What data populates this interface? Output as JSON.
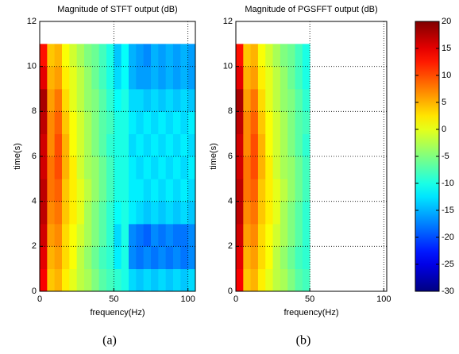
{
  "chart_data": [
    {
      "type": "heatmap",
      "title": "Magnitude of STFT output (dB)",
      "xlabel": "frequency(Hz)",
      "ylabel": "time(s)",
      "caption": "(a)",
      "x_edges": [
        0,
        5,
        10,
        15,
        20,
        25,
        30,
        35,
        40,
        45,
        50,
        55,
        60,
        65,
        70,
        75,
        80,
        85,
        90,
        95,
        100,
        105
      ],
      "y_edges": [
        0,
        1,
        2,
        3,
        4,
        5,
        6,
        7,
        8,
        9,
        10,
        11
      ],
      "z": [
        [
          14,
          4,
          5,
          2,
          0,
          -2,
          -3,
          -5,
          -7,
          -8,
          -9,
          -10,
          -13,
          -14,
          -13,
          -14,
          -13,
          -14,
          -13,
          -14,
          -13
        ],
        [
          15,
          5,
          6,
          3,
          1,
          -2,
          -4,
          -6,
          -8,
          -9,
          -12,
          -10,
          -17,
          -18,
          -17,
          -18,
          -17,
          -18,
          -17,
          -18,
          -17
        ],
        [
          16,
          6,
          7,
          3,
          1,
          -1,
          -3,
          -5,
          -7,
          -9,
          -13,
          -10,
          -17,
          -18,
          -19,
          -17,
          -18,
          -17,
          -18,
          -18,
          -17
        ],
        [
          17,
          7,
          8,
          4,
          2,
          0,
          -3,
          -5,
          -7,
          -9,
          -11,
          -10,
          -12,
          -13,
          -14,
          -13,
          -14,
          -13,
          -14,
          -13,
          -14
        ],
        [
          17,
          8,
          9,
          4,
          2,
          0,
          -2,
          -4,
          -6,
          -8,
          -10,
          -10,
          -12,
          -12,
          -13,
          -12,
          -13,
          -12,
          -13,
          -12,
          -13
        ],
        [
          16,
          8,
          10,
          5,
          2,
          -1,
          -3,
          -4,
          -6,
          -8,
          -10,
          -10,
          -12,
          -13,
          -12,
          -13,
          -12,
          -13,
          -12,
          -13,
          -12
        ],
        [
          16,
          7,
          10,
          5,
          1,
          -1,
          -3,
          -5,
          -7,
          -9,
          -10,
          -10,
          -13,
          -12,
          -13,
          -12,
          -13,
          -12,
          -13,
          -12,
          -13
        ],
        [
          17,
          7,
          9,
          4,
          1,
          -1,
          -3,
          -5,
          -7,
          -8,
          -10,
          -10,
          -12,
          -13,
          -12,
          -13,
          -12,
          -13,
          -12,
          -13,
          -12
        ],
        [
          18,
          6,
          8,
          3,
          0,
          -2,
          -4,
          -5,
          -7,
          -9,
          -11,
          -10,
          -13,
          -13,
          -14,
          -13,
          -14,
          -13,
          -14,
          -13,
          -14
        ],
        [
          15,
          5,
          6,
          2,
          0,
          -2,
          -4,
          -6,
          -8,
          -10,
          -13,
          -11,
          -15,
          -16,
          -16,
          -15,
          -16,
          -15,
          -16,
          -15,
          -16
        ],
        [
          13,
          4,
          5,
          1,
          -1,
          -3,
          -5,
          -6,
          -8,
          -10,
          -14,
          -11,
          -15,
          -16,
          -17,
          -15,
          -16,
          -15,
          -16,
          -15,
          -16
        ]
      ],
      "xlim": [
        0,
        105
      ],
      "ylim": [
        0,
        12
      ],
      "xticks": [
        0,
        50,
        100
      ],
      "yticks": [
        0,
        2,
        4,
        6,
        8,
        10,
        12
      ],
      "grid": true
    },
    {
      "type": "heatmap",
      "title": "Magnitude of PGSFFT output (dB)",
      "xlabel": "frequency(Hz)",
      "ylabel": "time(s)",
      "caption": "(b)",
      "x_edges": [
        0,
        5,
        10,
        15,
        20,
        25,
        30,
        35,
        40,
        45,
        50
      ],
      "y_edges": [
        0,
        1,
        2,
        3,
        4,
        5,
        6,
        7,
        8,
        9,
        10,
        11
      ],
      "z": [
        [
          14,
          4,
          5,
          2,
          0,
          -2,
          -3,
          -5,
          -7,
          -8
        ],
        [
          15,
          5,
          6,
          3,
          1,
          -2,
          -4,
          -6,
          -8,
          -9
        ],
        [
          16,
          6,
          7,
          3,
          1,
          -1,
          -3,
          -5,
          -7,
          -9
        ],
        [
          17,
          7,
          8,
          4,
          2,
          0,
          -3,
          -5,
          -7,
          -9
        ],
        [
          17,
          8,
          9,
          4,
          2,
          0,
          -2,
          -4,
          -6,
          -8
        ],
        [
          16,
          8,
          10,
          5,
          2,
          -1,
          -3,
          -4,
          -6,
          -8
        ],
        [
          16,
          7,
          10,
          5,
          1,
          -1,
          -3,
          -5,
          -7,
          -9
        ],
        [
          17,
          7,
          9,
          4,
          1,
          -1,
          -3,
          -5,
          -7,
          -8
        ],
        [
          18,
          6,
          8,
          3,
          0,
          -2,
          -4,
          -5,
          -7,
          -9
        ],
        [
          15,
          5,
          6,
          2,
          0,
          -2,
          -4,
          -6,
          -8,
          -10
        ],
        [
          13,
          4,
          5,
          1,
          -1,
          -3,
          -5,
          -6,
          -8,
          -10
        ]
      ],
      "xlim": [
        0,
        102
      ],
      "ylim": [
        0,
        12
      ],
      "xticks": [
        0,
        50,
        100
      ],
      "yticks": [
        0,
        2,
        4,
        6,
        8,
        10,
        12
      ],
      "grid": true
    }
  ],
  "colorbar": {
    "colormap": "jet",
    "zlim": [
      -30,
      20
    ],
    "ticks": [
      20,
      15,
      10,
      5,
      0,
      -5,
      -10,
      -15,
      -20,
      -25,
      -30
    ]
  }
}
